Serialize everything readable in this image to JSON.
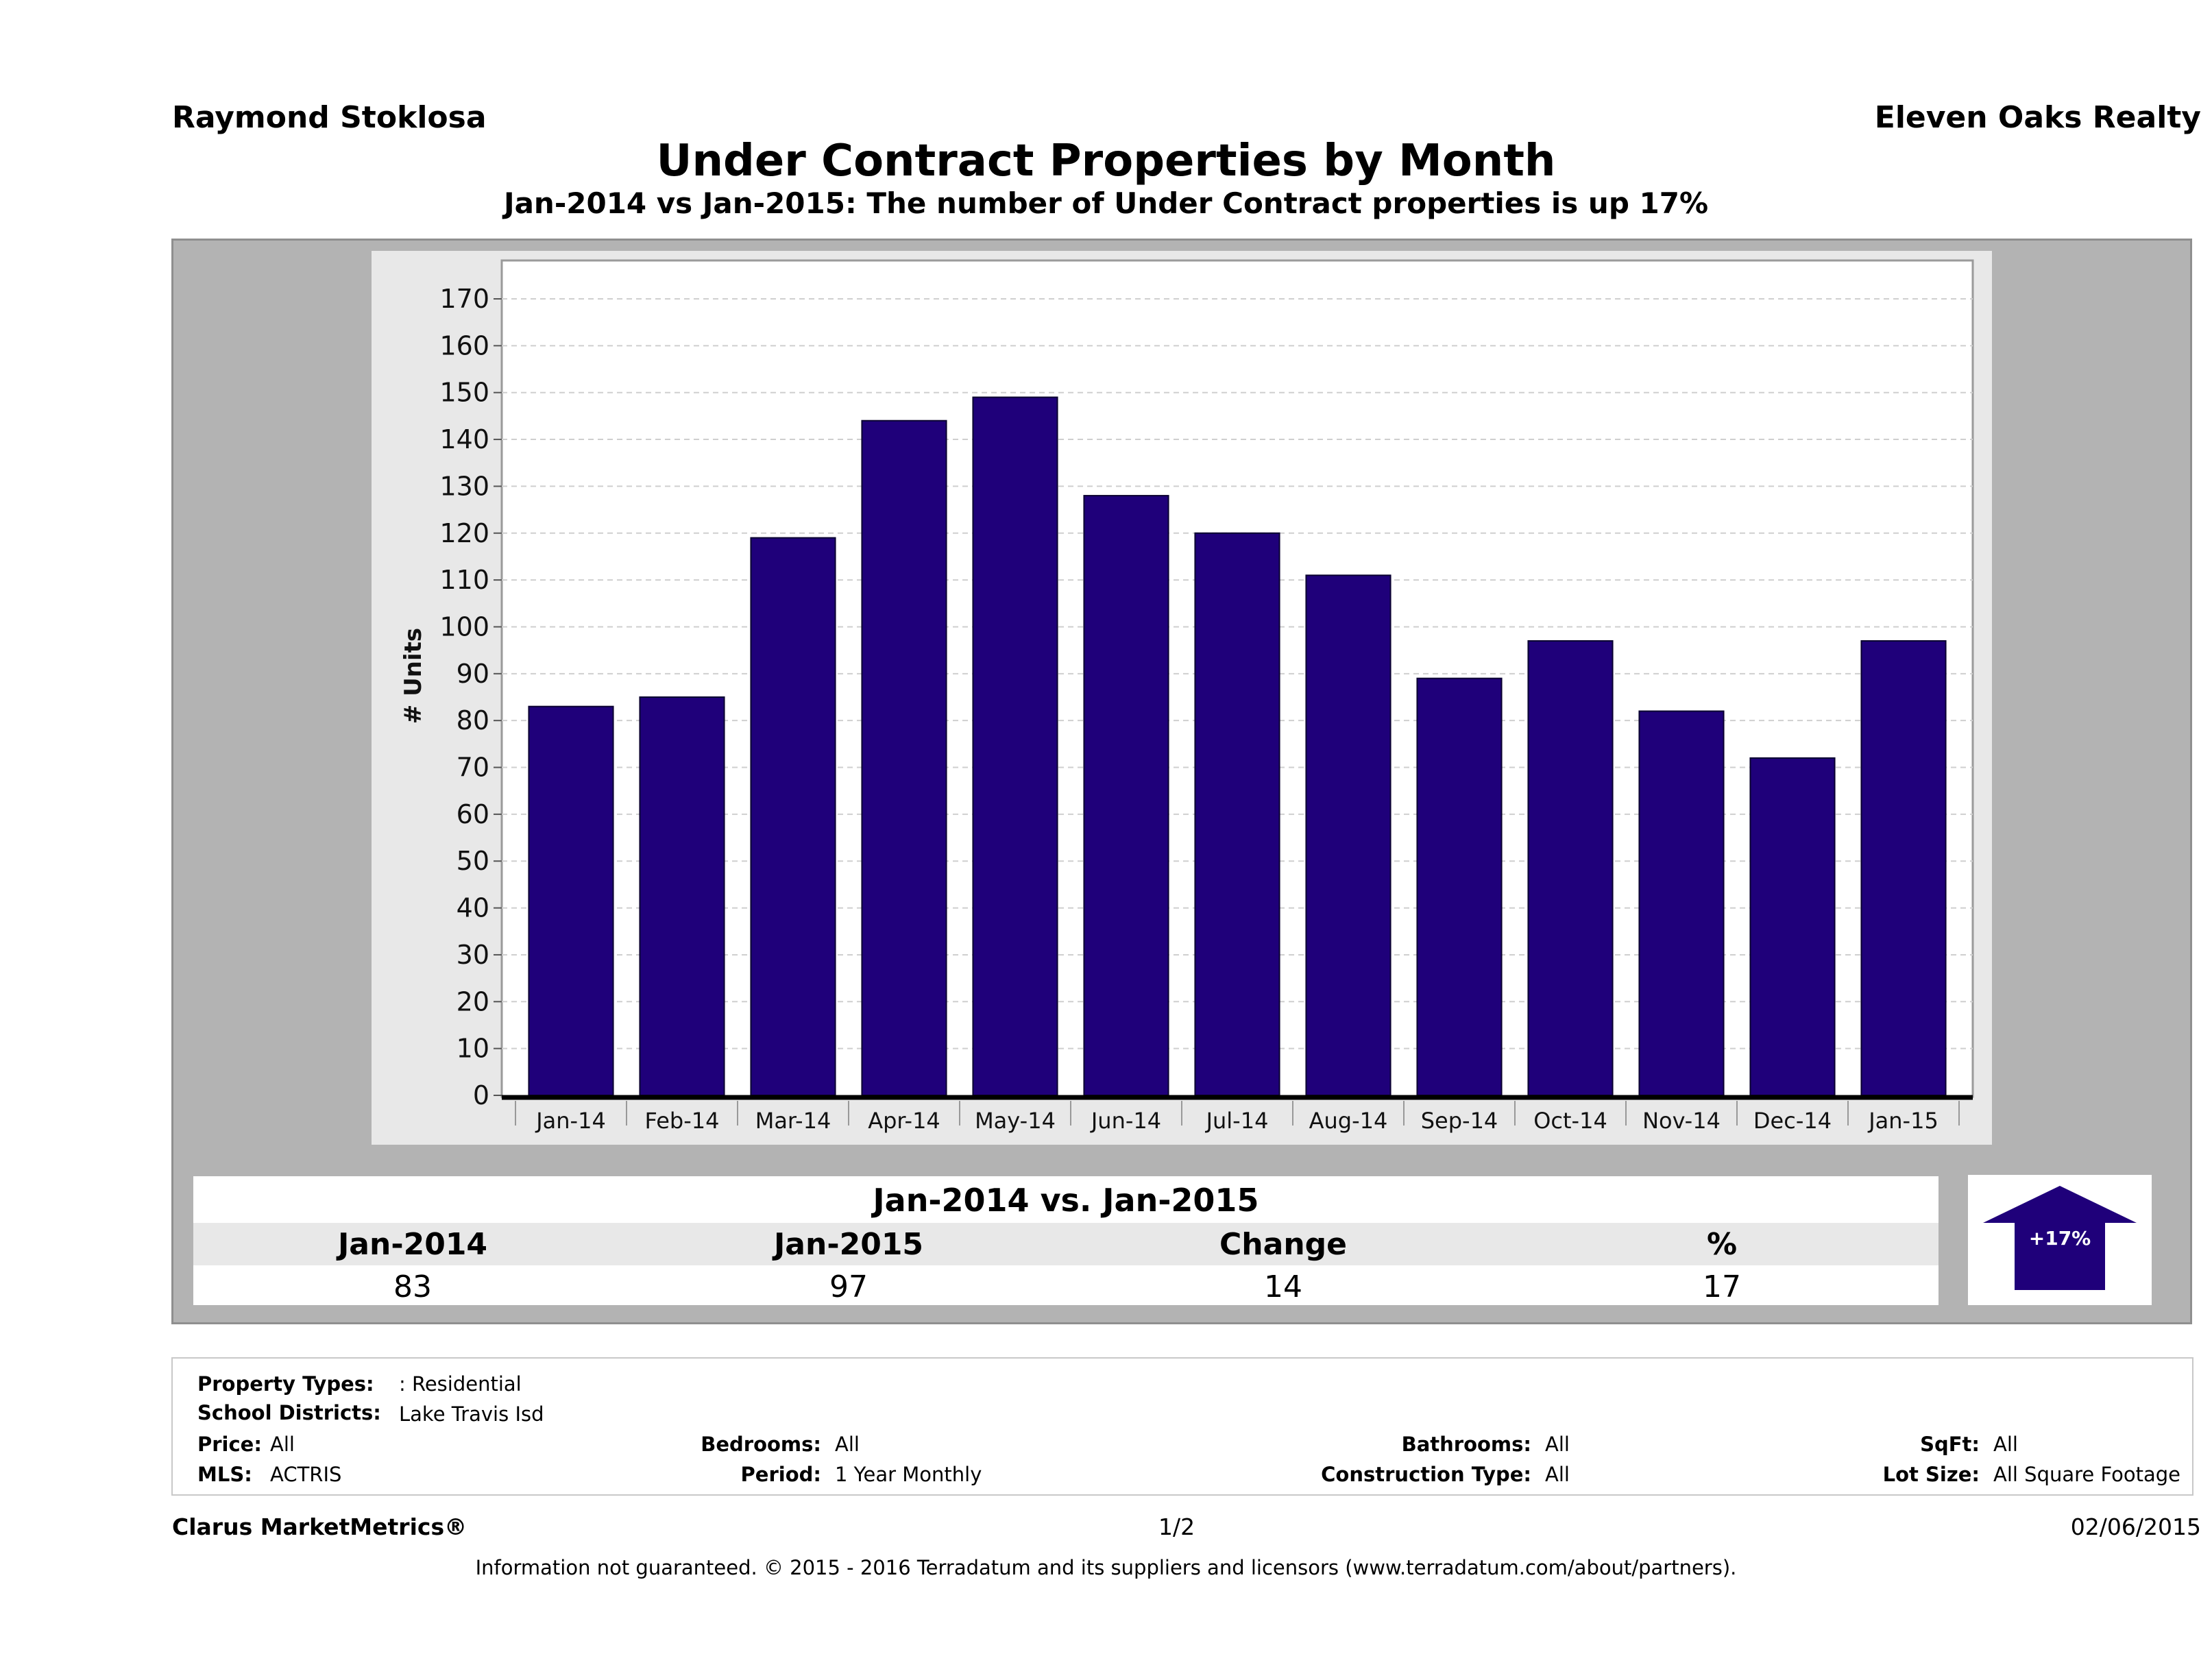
{
  "header": {
    "agent": "Raymond Stoklosa",
    "brokerage": "Eleven Oaks Realty",
    "title": "Under Contract Properties by Month",
    "subtitle": "Jan-2014 vs Jan-2015: The number of Under Contract  properties is up 17%"
  },
  "chart_data": {
    "type": "bar",
    "categories": [
      "Jan-14",
      "Feb-14",
      "Mar-14",
      "Apr-14",
      "May-14",
      "Jun-14",
      "Jul-14",
      "Aug-14",
      "Sep-14",
      "Oct-14",
      "Nov-14",
      "Dec-14",
      "Jan-15"
    ],
    "values": [
      83,
      85,
      119,
      144,
      149,
      128,
      120,
      111,
      89,
      97,
      82,
      72,
      97
    ],
    "ylabel": "# Units",
    "xlabel": "",
    "ylim": [
      0,
      170
    ],
    "yticks": [
      0,
      10,
      20,
      30,
      40,
      50,
      60,
      70,
      80,
      90,
      100,
      110,
      120,
      130,
      140,
      150,
      160,
      170
    ],
    "grid": true,
    "bar_color": "#1f007a"
  },
  "comparison": {
    "title": "Jan-2014 vs. Jan-2015",
    "headers": [
      "Jan-2014",
      "Jan-2015",
      "Change",
      "%"
    ],
    "values": [
      "83",
      "97",
      "14",
      "17"
    ],
    "badge": "+17%",
    "badge_color": "#1f007a"
  },
  "filters": {
    "property_types_label": "Property Types:",
    "property_types_value": ": Residential",
    "school_districts_label": "School Districts:",
    "school_districts_value": "Lake Travis Isd",
    "price_label": "Price:",
    "price_value": "All",
    "mls_label": "MLS:",
    "mls_value": "ACTRIS",
    "bedrooms_label": "Bedrooms:",
    "bedrooms_value": "All",
    "period_label": "Period:",
    "period_value": "1 Year Monthly",
    "bathrooms_label": "Bathrooms:",
    "bathrooms_value": "All",
    "construction_label": "Construction Type:",
    "construction_value": "All",
    "sqft_label": "SqFt:",
    "sqft_value": "All",
    "lot_size_label": "Lot Size:",
    "lot_size_value": "All Square Footage"
  },
  "footer": {
    "product": "Clarus MarketMetrics®",
    "page": "1/2",
    "date": "02/06/2015",
    "disclaimer": "Information not guaranteed. © 2015 - 2016 Terradatum and its suppliers and licensors (www.terradatum.com/about/partners)."
  }
}
